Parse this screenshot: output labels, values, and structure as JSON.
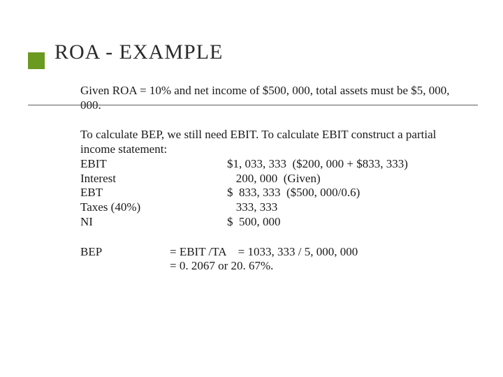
{
  "colors": {
    "bullet": "#6a9a1f",
    "rule": "#5c5c5c",
    "title_text": "#2a2a2a",
    "body_text": "#1a1a1a",
    "background": "#ffffff"
  },
  "typography": {
    "title_fontsize": 30,
    "body_fontsize": 17,
    "title_font": "Wide Latin / Copperplate style",
    "body_font": "Georgia / Times"
  },
  "title": "ROA - EXAMPLE",
  "para1": "Given ROA = 10% and net income of $500, 000, total assets must be $5, 000, 000.",
  "stmt_intro": "To calculate BEP, we still need EBIT.  To calculate EBIT construct a partial income statement:",
  "statement": [
    {
      "label": "EBIT",
      "value": "$1, 033, 333  ($200, 000 + $833, 333)"
    },
    {
      "label": "Interest",
      "value": "   200, 000  (Given)"
    },
    {
      "label": "EBT",
      "value": "$  833, 333  ($500, 000/0.6)"
    },
    {
      "label": "Taxes (40%)",
      "value": "   333, 333"
    },
    {
      "label": "NI",
      "value": "$  500, 000"
    }
  ],
  "bep": {
    "label": "BEP",
    "line1": "= EBIT /TA    = 1033, 333 / 5, 000, 000",
    "line2": "= 0. 2067 or 20. 67%."
  }
}
